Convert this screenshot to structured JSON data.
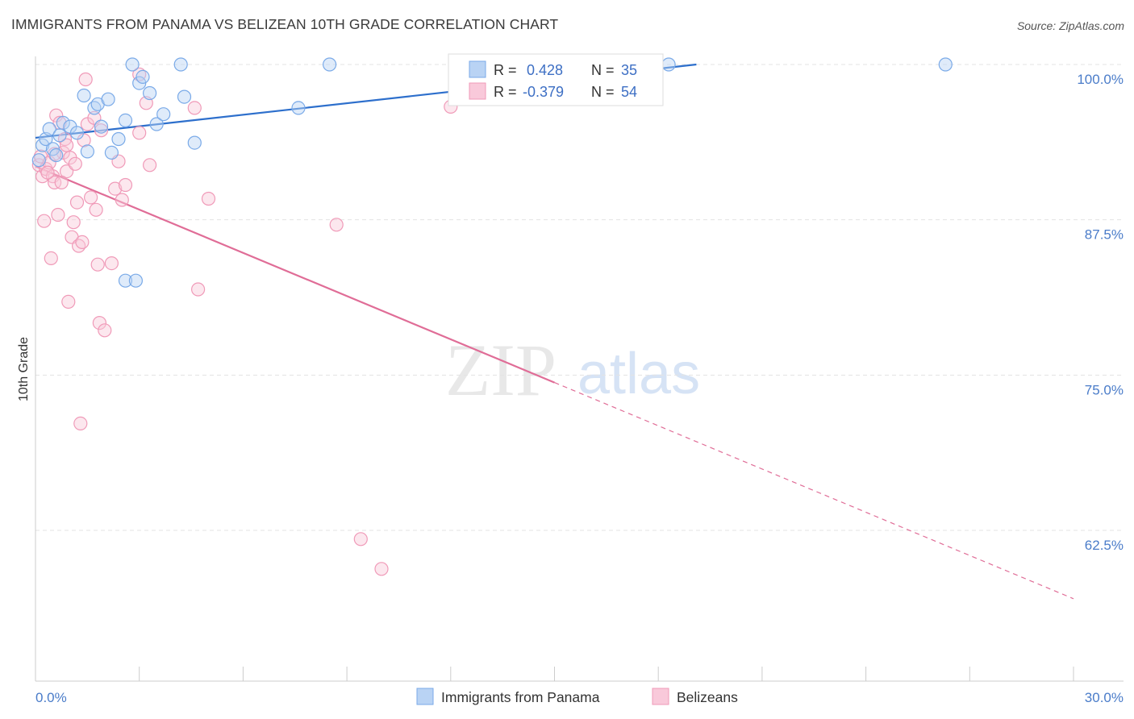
{
  "title": "IMMIGRANTS FROM PANAMA VS BELIZEAN 10TH GRADE CORRELATION CHART",
  "source": "Source: ZipAtlas.com",
  "watermark": {
    "zip": "ZIP",
    "atlas": "atlas"
  },
  "colors": {
    "panama": "#7aaae8",
    "panama_fill": "#b9d3f4",
    "panama_line": "#2d6fcc",
    "belize": "#f09ab8",
    "belize_fill": "#f9c9da",
    "belize_line": "#e06d97",
    "grid": "#e3e3e3",
    "axis_text": "#4a7cc9"
  },
  "legend_box": {
    "rows": [
      {
        "r_label": "R =",
        "r_value": " 0.428",
        "n_label": "N =",
        "n_value": "35"
      },
      {
        "r_label": "R =",
        "r_value": "-0.379",
        "n_label": "N =",
        "n_value": "54"
      }
    ]
  },
  "bottom_legend": [
    "Immigrants from Panama",
    "Belizeans"
  ],
  "chart_data": {
    "type": "scatter",
    "title": "IMMIGRANTS FROM PANAMA VS BELIZEAN 10TH GRADE CORRELATION CHART",
    "xlabel": "",
    "ylabel": "10th Grade",
    "xlim": [
      0,
      30
    ],
    "ylim": [
      52.5,
      102
    ],
    "x_tick_labels": [
      "0.0%",
      "30.0%"
    ],
    "y_ticks": [
      100,
      87.5,
      75,
      62.5
    ],
    "y_tick_labels": [
      "100.0%",
      "87.5%",
      "75.0%",
      "62.5%"
    ],
    "grid": true,
    "legend_position": "top-center",
    "series": [
      {
        "name": "Immigrants from Panama",
        "r": 0.428,
        "n": 35,
        "trend": {
          "x0": 0,
          "y0": 94.1,
          "x1": 19.1,
          "y1": 100.0,
          "solid_to": 19.1
        },
        "points": [
          [
            0.1,
            92.3
          ],
          [
            0.2,
            93.5
          ],
          [
            0.3,
            94.0
          ],
          [
            0.4,
            94.8
          ],
          [
            0.5,
            93.2
          ],
          [
            0.6,
            92.7
          ],
          [
            0.7,
            94.3
          ],
          [
            0.8,
            95.3
          ],
          [
            1.0,
            95.0
          ],
          [
            1.2,
            94.5
          ],
          [
            1.4,
            97.5
          ],
          [
            1.5,
            93.0
          ],
          [
            1.7,
            96.5
          ],
          [
            1.8,
            96.8
          ],
          [
            1.9,
            95.0
          ],
          [
            2.1,
            97.2
          ],
          [
            2.2,
            92.9
          ],
          [
            2.4,
            94.0
          ],
          [
            2.6,
            82.6
          ],
          [
            2.6,
            95.5
          ],
          [
            2.8,
            100.0
          ],
          [
            3.0,
            98.5
          ],
          [
            3.1,
            99.0
          ],
          [
            3.3,
            97.7
          ],
          [
            3.5,
            95.2
          ],
          [
            3.7,
            96.0
          ],
          [
            2.9,
            82.6
          ],
          [
            4.2,
            100.0
          ],
          [
            4.3,
            97.4
          ],
          [
            4.6,
            93.7
          ],
          [
            7.6,
            96.5
          ],
          [
            8.5,
            100.0
          ],
          [
            14.5,
            99.9
          ],
          [
            18.3,
            100.0
          ],
          [
            26.3,
            100.0
          ]
        ]
      },
      {
        "name": "Belizeans",
        "r": -0.379,
        "n": 54,
        "trend": {
          "x0": 0,
          "y0": 91.8,
          "x1": 30,
          "y1": 57.0,
          "solid_to": 15.0
        },
        "points": [
          [
            0.1,
            91.9
          ],
          [
            0.15,
            92.6
          ],
          [
            0.2,
            91.0
          ],
          [
            0.25,
            87.4
          ],
          [
            0.3,
            91.6
          ],
          [
            0.4,
            92.1
          ],
          [
            0.45,
            84.4
          ],
          [
            0.5,
            91.0
          ],
          [
            0.55,
            90.5
          ],
          [
            0.6,
            95.9
          ],
          [
            0.65,
            87.9
          ],
          [
            0.7,
            95.3
          ],
          [
            0.8,
            92.9
          ],
          [
            0.85,
            94.0
          ],
          [
            0.9,
            91.4
          ],
          [
            0.95,
            80.9
          ],
          [
            1.0,
            92.5
          ],
          [
            1.05,
            86.1
          ],
          [
            1.1,
            87.3
          ],
          [
            1.2,
            88.9
          ],
          [
            1.25,
            85.4
          ],
          [
            1.3,
            71.1
          ],
          [
            1.35,
            85.7
          ],
          [
            1.4,
            93.9
          ],
          [
            1.45,
            98.8
          ],
          [
            1.5,
            95.2
          ],
          [
            1.6,
            89.3
          ],
          [
            1.7,
            95.7
          ],
          [
            1.75,
            88.3
          ],
          [
            1.8,
            83.9
          ],
          [
            1.85,
            79.2
          ],
          [
            1.9,
            94.7
          ],
          [
            2.0,
            78.6
          ],
          [
            2.2,
            84.0
          ],
          [
            2.3,
            90.0
          ],
          [
            2.4,
            92.2
          ],
          [
            2.5,
            89.1
          ],
          [
            2.6,
            90.3
          ],
          [
            0.35,
            91.3
          ],
          [
            3.0,
            99.2
          ],
          [
            3.0,
            94.5
          ],
          [
            3.2,
            96.9
          ],
          [
            3.3,
            91.9
          ],
          [
            4.6,
            96.5
          ],
          [
            4.7,
            81.9
          ],
          [
            5.0,
            89.2
          ],
          [
            8.7,
            87.1
          ],
          [
            9.4,
            61.8
          ],
          [
            10.0,
            59.4
          ],
          [
            12.0,
            96.6
          ],
          [
            0.9,
            93.5
          ],
          [
            1.15,
            92.0
          ],
          [
            0.75,
            90.5
          ],
          [
            0.55,
            92.8
          ]
        ]
      }
    ]
  }
}
